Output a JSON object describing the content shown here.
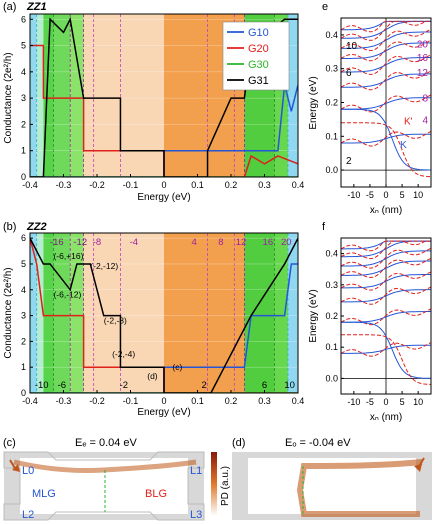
{
  "panel_a": {
    "label": "(a)",
    "name": "ZZ1",
    "ylabel": "Conductance (2e²/h)",
    "xlabel": "Energy (eV)",
    "xticks": [
      "-0.4",
      "-0.3",
      "-0.2",
      "-0.1",
      "0",
      "0.1",
      "0.2",
      "0.3",
      "0.4"
    ],
    "yticks": [
      "0",
      "1",
      "2",
      "3",
      "4",
      "5",
      "6"
    ],
    "legend": [
      {
        "name": "G10",
        "color": "#2456d6"
      },
      {
        "name": "G20",
        "color": "#e0201b"
      },
      {
        "name": "G30",
        "color": "#2bb52b"
      },
      {
        "name": "G31",
        "color": "#000000"
      }
    ]
  },
  "panel_b": {
    "label": "(b)",
    "name": "ZZ2",
    "ylabel": "Conductance (2e²/h)",
    "xlabel": "Energy (eV)",
    "xticks": [
      "-0.4",
      "-0.3",
      "-0.2",
      "-0.1",
      "0",
      "0.1",
      "0.2",
      "0.3",
      "0.4"
    ],
    "yticks": [
      "0",
      "1",
      "2",
      "3",
      "4",
      "5",
      "6"
    ],
    "top_labels": [
      "-16",
      "-12",
      "-8",
      "-4",
      "4",
      "8",
      "12",
      "16",
      "20"
    ],
    "bottom_labels": [
      "-10",
      "-6",
      "-2",
      "2",
      "6",
      "10"
    ],
    "annotations": [
      "(-6,+16)",
      "(-2,-12)",
      "(-6,-12)",
      "(-2,-8)",
      "(-2,-4)",
      "(c)",
      "(d)"
    ]
  },
  "panel_e": {
    "label": "e",
    "ylabel": "Energy (eV)",
    "xlabel": "xₙ (nm)",
    "yticks": [
      "0.0",
      "0.1",
      "0.2",
      "0.3",
      "0.4"
    ],
    "xticks": [
      "-10",
      "-5",
      "0",
      "5",
      "10"
    ],
    "left_labels": [
      "10",
      "6",
      "2"
    ],
    "right_labels": [
      "20",
      "16",
      "12",
      "8",
      "4"
    ],
    "valley_labels": [
      "K'",
      "K"
    ]
  },
  "panel_f": {
    "label": "f",
    "ylabel": "Energy (eV)",
    "xlabel": "xₙ (nm)",
    "yticks": [
      "0.0",
      "0.1",
      "0.2",
      "0.3",
      "0.4"
    ],
    "xticks": [
      "-10",
      "-5",
      "0",
      "5",
      "10"
    ]
  },
  "panel_c": {
    "label": "(c)",
    "energy": "Eₑ = 0.04 eV",
    "leads": [
      "L0",
      "L1",
      "L2",
      "L3"
    ],
    "regions": [
      "MLG",
      "BLG"
    ]
  },
  "panel_d": {
    "label": "(d)",
    "energy": "Eₒ = -0.04 eV"
  },
  "colorbar_label": "PD (a.u.)",
  "chart_data": [
    {
      "type": "line",
      "title": "ZZ1",
      "xlabel": "Energy (eV)",
      "ylabel": "Conductance (2e²/h)",
      "xlim": [
        -0.4,
        0.4
      ],
      "ylim": [
        0,
        6.2
      ],
      "series": [
        {
          "name": "G10",
          "x": [
            -0.4,
            0,
            0,
            0.24,
            0.26,
            0.3,
            0.34,
            0.36,
            0.38,
            0.4
          ],
          "values": [
            0,
            0,
            1,
            1,
            1,
            1,
            1,
            3.5,
            2.5,
            3.5
          ]
        },
        {
          "name": "G20",
          "x": [
            -0.4,
            -0.36,
            -0.36,
            -0.28,
            -0.28,
            -0.24,
            -0.24,
            0,
            0,
            0.24,
            0.26,
            0.3,
            0.34,
            0.4
          ],
          "values": [
            5,
            5,
            3,
            3,
            3,
            3,
            1,
            1,
            0,
            0,
            0.8,
            0.5,
            0.8,
            0.5
          ]
        },
        {
          "name": "G30",
          "x": [
            -0.4,
            0.4
          ],
          "values": [
            0,
            0
          ]
        },
        {
          "name": "G31",
          "x": [
            -0.4,
            -0.36,
            -0.34,
            -0.3,
            -0.28,
            -0.24,
            -0.24,
            -0.16,
            -0.13,
            -0.13,
            0,
            0,
            0.13,
            0.13,
            0.2,
            0.24,
            0.26,
            0.36,
            0.4
          ],
          "values": [
            0,
            0,
            6,
            5.5,
            6,
            3,
            3,
            3,
            3,
            1,
            1,
            0,
            0,
            1,
            3,
            3,
            5,
            6,
            6
          ]
        }
      ]
    },
    {
      "type": "line",
      "title": "ZZ2",
      "xlabel": "Energy (eV)",
      "ylabel": "Conductance (2e²/h)",
      "xlim": [
        -0.4,
        0.4
      ],
      "ylim": [
        0,
        6.2
      ],
      "series": [
        {
          "name": "G10",
          "x": [
            -0.4,
            0,
            0,
            0.24,
            0.26,
            0.36,
            0.38,
            0.4
          ],
          "values": [
            0,
            0,
            1,
            1,
            3,
            3,
            5,
            5
          ]
        },
        {
          "name": "G20",
          "x": [
            -0.4,
            -0.38,
            -0.36,
            -0.28,
            -0.28,
            -0.24,
            -0.24,
            0,
            0,
            0.4
          ],
          "values": [
            6,
            5,
            3,
            3,
            3,
            3,
            1,
            1,
            0,
            0
          ]
        },
        {
          "name": "G30",
          "x": [
            -0.4,
            0.4
          ],
          "values": [
            0,
            0
          ]
        },
        {
          "name": "G31",
          "x": [
            -0.4,
            -0.36,
            -0.34,
            -0.28,
            -0.26,
            -0.22,
            -0.18,
            -0.13,
            -0.13,
            0,
            0,
            0.14,
            0.18,
            0.22,
            0.26,
            0.36,
            0.4
          ],
          "values": [
            6,
            5,
            5,
            4,
            5,
            5,
            3,
            3,
            1,
            1,
            0,
            0,
            1,
            2,
            3,
            5,
            6
          ]
        }
      ]
    }
  ]
}
